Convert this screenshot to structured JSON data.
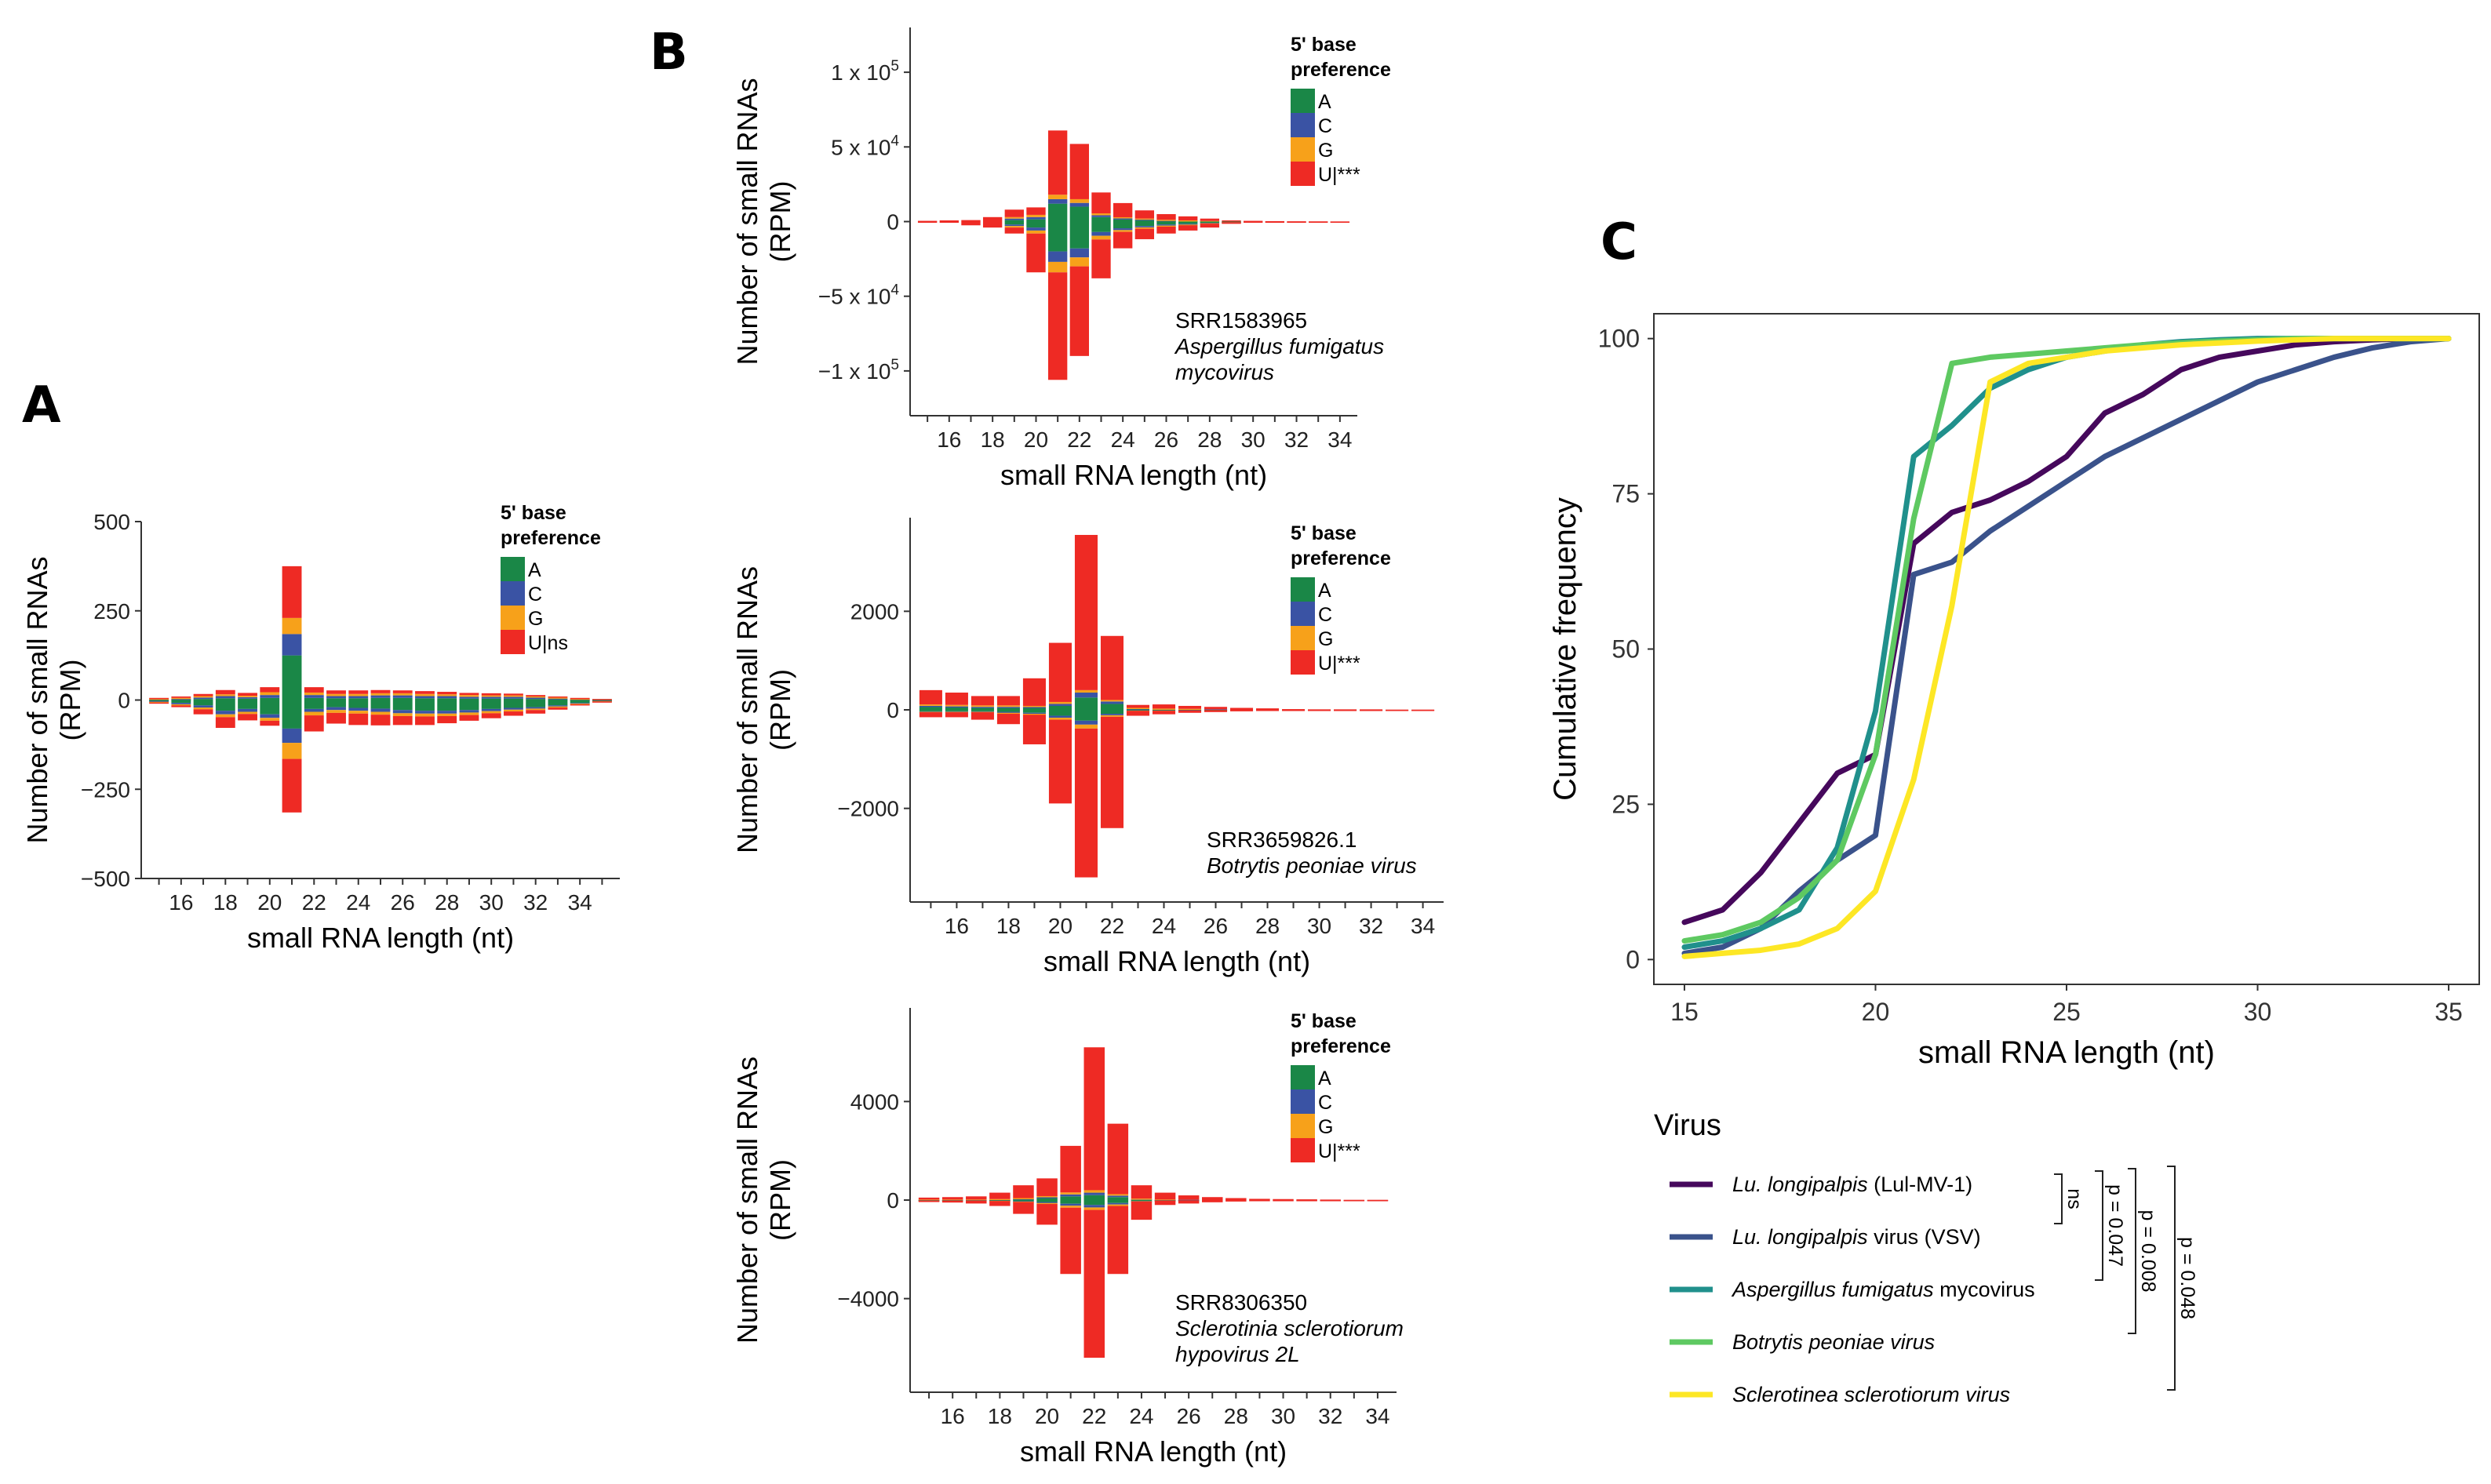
{
  "panels": {
    "A": "A",
    "B": "B",
    "C": "C"
  },
  "colors": {
    "A": "#1a8747",
    "C": "#3a53a4",
    "G": "#f7a11a",
    "U": "#ee2a24"
  },
  "chart_data": [
    {
      "id": "A",
      "type": "bar",
      "title": "",
      "xlabel": "small RNA length (nt)",
      "ylabel_line1": "Number of small RNAs",
      "ylabel_line2": "(RPM)",
      "ylim": [
        -500,
        500
      ],
      "yticks": [
        500,
        250,
        0,
        -250,
        -500
      ],
      "ytick_labels": [
        "500",
        "250",
        "0",
        "−250",
        "−500"
      ],
      "xticks": [
        "16",
        "18",
        "20",
        "22",
        "24",
        "26",
        "28",
        "30",
        "32",
        "34"
      ],
      "lengths": [
        15,
        16,
        17,
        18,
        19,
        20,
        21,
        22,
        23,
        24,
        25,
        26,
        27,
        28,
        29,
        30,
        31,
        32,
        33,
        34,
        35
      ],
      "legend_title_line1": "5' base",
      "legend_title_line2": "preference",
      "legend_labels": [
        "A",
        "C",
        "G",
        "U|ns"
      ],
      "pos": {
        "A": [
          1,
          2,
          3,
          5,
          4,
          6,
          125,
          6,
          5,
          5,
          6,
          6,
          5,
          5,
          4,
          4,
          4,
          3,
          2,
          1,
          0
        ],
        "C": [
          1,
          2,
          4,
          6,
          4,
          8,
          60,
          8,
          6,
          6,
          7,
          7,
          6,
          6,
          5,
          5,
          5,
          4,
          3,
          2,
          1
        ],
        "G": [
          2,
          2,
          4,
          5,
          4,
          8,
          45,
          7,
          6,
          6,
          6,
          6,
          6,
          5,
          5,
          4,
          4,
          3,
          2,
          1,
          1
        ],
        "U": [
          2,
          4,
          6,
          12,
          8,
          14,
          145,
          15,
          10,
          10,
          9,
          8,
          8,
          7,
          6,
          6,
          5,
          4,
          3,
          2,
          1
        ]
      },
      "neg": {
        "A": [
          3,
          8,
          15,
          30,
          25,
          40,
          80,
          25,
          20,
          22,
          24,
          28,
          30,
          30,
          28,
          25,
          22,
          20,
          15,
          8,
          2
        ],
        "C": [
          2,
          4,
          6,
          10,
          8,
          10,
          40,
          8,
          8,
          8,
          9,
          9,
          8,
          8,
          7,
          6,
          5,
          4,
          3,
          2,
          1
        ],
        "G": [
          2,
          3,
          5,
          8,
          6,
          8,
          45,
          10,
          8,
          8,
          8,
          8,
          8,
          7,
          7,
          6,
          5,
          4,
          3,
          2,
          1
        ],
        "U": [
          2,
          5,
          14,
          30,
          18,
          14,
          150,
          45,
          30,
          32,
          30,
          25,
          24,
          20,
          16,
          14,
          12,
          10,
          6,
          3,
          1
        ]
      }
    },
    {
      "id": "B1",
      "type": "bar",
      "xlabel": "small RNA length (nt)",
      "ylabel_line1": "Number of small RNAs",
      "ylabel_line2": "(RPM)",
      "ylim": [
        -130000,
        130000
      ],
      "yticks": [
        100000,
        50000,
        0,
        -50000,
        -100000
      ],
      "ytick_base": [
        "1 x 10",
        "5 x 10",
        "0",
        "−5 x 10",
        "−1 x 10"
      ],
      "ytick_exp": [
        "5",
        "4",
        "",
        "4",
        "5"
      ],
      "xticks": [
        "16",
        "18",
        "20",
        "22",
        "24",
        "26",
        "28",
        "30",
        "32",
        "34"
      ],
      "lengths": [
        15,
        16,
        17,
        18,
        19,
        20,
        21,
        22,
        23,
        24,
        25,
        26,
        27,
        28,
        29,
        30,
        31,
        32,
        33,
        34
      ],
      "legend_title_line1": "5' base",
      "legend_title_line2": "preference",
      "legend_labels": [
        "A",
        "C",
        "G",
        "U|***"
      ],
      "annotation_id": "SRR1583965",
      "annotation_line1": "Aspergillus fumigatus",
      "annotation_line2": "mycovirus",
      "pos": {
        "A": [
          0,
          0,
          0,
          0,
          1000,
          1500,
          12000,
          10000,
          3000,
          1500,
          1000,
          600,
          400,
          200,
          100,
          0,
          0,
          0,
          0,
          0
        ],
        "C": [
          0,
          0,
          0,
          0,
          1000,
          1500,
          3000,
          2500,
          1200,
          700,
          500,
          300,
          200,
          100,
          0,
          0,
          0,
          0,
          0,
          0
        ],
        "G": [
          0,
          0,
          0,
          0,
          1000,
          1500,
          3000,
          2500,
          1300,
          700,
          500,
          300,
          200,
          100,
          0,
          0,
          0,
          0,
          0,
          0
        ],
        "U": [
          500,
          800,
          1000,
          3000,
          5000,
          5000,
          43000,
          37000,
          14000,
          9500,
          5500,
          3800,
          2700,
          1600,
          700,
          500,
          300,
          200,
          150,
          100
        ]
      },
      "neg": {
        "A": [
          0,
          0,
          0,
          0,
          2000,
          4000,
          20000,
          18000,
          7000,
          4500,
          3000,
          2000,
          1500,
          800,
          300,
          0,
          0,
          0,
          0,
          0
        ],
        "C": [
          0,
          0,
          0,
          0,
          1000,
          2000,
          7000,
          6000,
          2500,
          1200,
          900,
          700,
          500,
          300,
          100,
          0,
          0,
          0,
          0,
          0
        ],
        "G": [
          0,
          0,
          0,
          0,
          1000,
          2000,
          7000,
          6000,
          2500,
          1200,
          900,
          700,
          500,
          300,
          100,
          0,
          0,
          0,
          0,
          0
        ],
        "U": [
          500,
          800,
          2500,
          4000,
          4000,
          26000,
          72000,
          60000,
          26000,
          11000,
          7000,
          4600,
          3500,
          2600,
          1000,
          500,
          300,
          200,
          150,
          100
        ]
      }
    },
    {
      "id": "B2",
      "type": "bar",
      "xlabel": "small RNA length (nt)",
      "ylabel_line1": "Number of small RNAs",
      "ylabel_line2": "(RPM)",
      "ylim": [
        -3900,
        3900
      ],
      "yticks": [
        2000,
        0,
        -2000
      ],
      "ytick_labels": [
        "2000",
        "0",
        "−2000"
      ],
      "xticks": [
        "16",
        "18",
        "20",
        "22",
        "24",
        "26",
        "28",
        "30",
        "32",
        "34"
      ],
      "lengths": [
        15,
        16,
        17,
        18,
        19,
        20,
        21,
        22,
        23,
        24,
        25,
        26,
        27,
        28,
        29,
        30,
        31,
        32,
        33,
        34
      ],
      "legend_title_line1": "5' base",
      "legend_title_line2": "preference",
      "legend_labels": [
        "A",
        "C",
        "G",
        "U|***"
      ],
      "annotation_id": "SRR3659826.1",
      "annotation_line1": "Botrytis peoniae virus",
      "annotation_line2": "",
      "pos": {
        "A": [
          60,
          50,
          40,
          40,
          40,
          80,
          250,
          120,
          20,
          10,
          10,
          5,
          0,
          0,
          0,
          0,
          0,
          0,
          0,
          0
        ],
        "C": [
          20,
          20,
          20,
          20,
          20,
          40,
          100,
          50,
          10,
          10,
          5,
          5,
          0,
          0,
          0,
          0,
          0,
          0,
          0,
          0
        ],
        "G": [
          30,
          30,
          30,
          30,
          20,
          40,
          50,
          30,
          10,
          5,
          5,
          0,
          0,
          0,
          0,
          0,
          0,
          0,
          0,
          0
        ],
        "U": [
          290,
          250,
          190,
          190,
          560,
          1200,
          3150,
          1300,
          60,
          85,
          60,
          50,
          40,
          30,
          15,
          10,
          10,
          10,
          5,
          5
        ]
      },
      "neg": {
        "A": [
          30,
          30,
          30,
          40,
          60,
          120,
          220,
          80,
          10,
          10,
          5,
          5,
          0,
          0,
          0,
          0,
          0,
          0,
          0,
          0
        ],
        "C": [
          10,
          10,
          10,
          20,
          20,
          40,
          80,
          30,
          5,
          5,
          5,
          0,
          0,
          0,
          0,
          0,
          0,
          0,
          0,
          0
        ],
        "G": [
          10,
          10,
          10,
          20,
          20,
          40,
          80,
          30,
          5,
          5,
          0,
          0,
          0,
          0,
          0,
          0,
          0,
          0,
          0,
          0
        ],
        "U": [
          100,
          100,
          150,
          210,
          600,
          1700,
          3020,
          2260,
          100,
          70,
          50,
          40,
          30,
          20,
          10,
          10,
          10,
          5,
          5,
          5
        ]
      }
    },
    {
      "id": "B3",
      "type": "bar",
      "xlabel": "small RNA length (nt)",
      "ylabel_line1": "Number of small RNAs",
      "ylabel_line2": "(RPM)",
      "ylim": [
        -7800,
        7800
      ],
      "yticks": [
        4000,
        0,
        -4000
      ],
      "ytick_labels": [
        "4000",
        "0",
        "−4000"
      ],
      "xticks": [
        "16",
        "18",
        "20",
        "22",
        "24",
        "26",
        "28",
        "30",
        "32",
        "34"
      ],
      "lengths": [
        15,
        16,
        17,
        18,
        19,
        20,
        21,
        22,
        23,
        24,
        25,
        26,
        27,
        28,
        29,
        30,
        31,
        32,
        33,
        34
      ],
      "legend_title_line1": "5' base",
      "legend_title_line2": "preference",
      "legend_labels": [
        "A",
        "C",
        "G",
        "U|***"
      ],
      "annotation_id": "SRR8306350",
      "annotation_line1": "Sclerotinia sclerotiorum",
      "annotation_line2": "hypovirus 2L",
      "pos": {
        "A": [
          10,
          10,
          10,
          20,
          40,
          80,
          150,
          200,
          120,
          30,
          10,
          5,
          0,
          0,
          0,
          0,
          0,
          0,
          0,
          0
        ],
        "C": [
          5,
          5,
          5,
          10,
          20,
          40,
          80,
          100,
          60,
          15,
          5,
          5,
          0,
          0,
          0,
          0,
          0,
          0,
          0,
          0
        ],
        "G": [
          5,
          5,
          5,
          10,
          20,
          40,
          80,
          100,
          60,
          15,
          5,
          0,
          0,
          0,
          0,
          0,
          0,
          0,
          0,
          0
        ],
        "U": [
          80,
          100,
          130,
          260,
          520,
          720,
          1890,
          5800,
          2860,
          540,
          280,
          180,
          120,
          80,
          50,
          40,
          30,
          20,
          10,
          10
        ]
      },
      "neg": {
        "A": [
          10,
          10,
          10,
          20,
          40,
          80,
          150,
          200,
          120,
          30,
          10,
          5,
          0,
          0,
          0,
          0,
          0,
          0,
          0,
          0
        ],
        "C": [
          5,
          5,
          5,
          10,
          20,
          40,
          80,
          100,
          60,
          15,
          5,
          5,
          0,
          0,
          0,
          0,
          0,
          0,
          0,
          0
        ],
        "G": [
          5,
          5,
          5,
          10,
          20,
          40,
          80,
          100,
          60,
          15,
          5,
          0,
          0,
          0,
          0,
          0,
          0,
          0,
          0,
          0
        ],
        "U": [
          60,
          80,
          120,
          200,
          480,
          840,
          2690,
          6000,
          2760,
          740,
          180,
          130,
          90,
          60,
          40,
          30,
          20,
          20,
          10,
          10
        ]
      }
    },
    {
      "id": "C",
      "type": "line",
      "xlabel": "small RNA length (nt)",
      "ylabel": "Cumulative frequency",
      "xlim": [
        14.2,
        35.8
      ],
      "ylim": [
        -4,
        104
      ],
      "xticks": [
        15,
        20,
        25,
        30,
        35
      ],
      "yticks": [
        0,
        25,
        50,
        75,
        100
      ],
      "x": [
        15,
        16,
        17,
        18,
        19,
        20,
        21,
        22,
        23,
        24,
        25,
        26,
        27,
        28,
        29,
        30,
        31,
        32,
        33,
        34,
        35
      ],
      "legend_title": "Virus",
      "series": [
        {
          "name_italic": "Lu. longipalpis",
          "name_rest": "  (Lul-MV-1)",
          "color": "#46085c",
          "values": [
            6,
            8,
            14,
            22,
            30,
            33,
            67,
            72,
            74,
            77,
            81,
            88,
            91,
            95,
            97,
            98,
            99,
            99.5,
            99.8,
            100,
            100
          ]
        },
        {
          "name_italic": "Lu. longipalpis",
          "name_rest": " virus (VSV)",
          "color": "#3a528b",
          "values": [
            1,
            2,
            5,
            11,
            16,
            20,
            62,
            64,
            69,
            73,
            77,
            81,
            84,
            87,
            90,
            93,
            95,
            97,
            98.5,
            99.5,
            100
          ]
        },
        {
          "name_italic": "Aspergillus fumigatus",
          "name_rest": " mycovirus",
          "color": "#20908c",
          "values": [
            2,
            3,
            5,
            8,
            18,
            40,
            81,
            86,
            92,
            95,
            97,
            98,
            99,
            99.5,
            99.8,
            100,
            100,
            100,
            100,
            100,
            100
          ]
        },
        {
          "name_italic": "Botrytis peoniae virus",
          "name_rest": "",
          "color": "#5ec961",
          "values": [
            3,
            4,
            6,
            10,
            16,
            33,
            71,
            96,
            97,
            97.5,
            98,
            98.5,
            99,
            99.3,
            99.6,
            99.8,
            100,
            100,
            100,
            100,
            100
          ]
        },
        {
          "name_italic": "Sclerotinea sclerotiorum virus",
          "name_rest": "",
          "color": "#fde725",
          "values": [
            0.5,
            1,
            1.5,
            2.5,
            5,
            11,
            29,
            57,
            93,
            96,
            97,
            98,
            98.5,
            99,
            99.3,
            99.6,
            99.8,
            100,
            100,
            100,
            100
          ]
        }
      ],
      "significance": [
        "ns",
        "p = 0.047",
        "p = 0.008",
        "p = 0.048"
      ]
    }
  ]
}
